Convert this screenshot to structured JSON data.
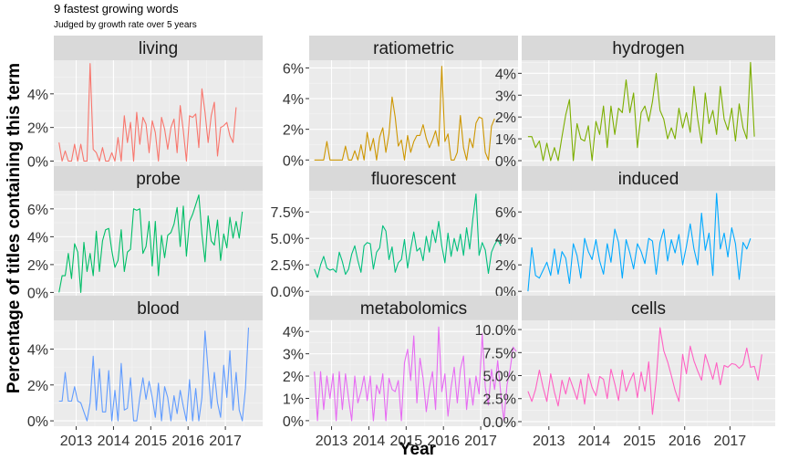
{
  "title": "9 fastest growing words",
  "subtitle": "Judged by growth rate over 5 years",
  "xlabel": "Year",
  "ylabel": "Percentage of titles containing this term",
  "chart_data": {
    "type": "line",
    "title": "9 fastest growing words",
    "subtitle": "Judged by growth rate over 5 years",
    "xlabel": "Year",
    "ylabel": "Percentage of titles containing this term",
    "x_ticks": [
      2013,
      2014,
      2015,
      2016,
      2017
    ],
    "xlim": [
      2012.4,
      2018.0
    ],
    "x_start": 2012.54,
    "x_step": 0.0833,
    "grid": true,
    "legend": "none",
    "facets": [
      {
        "name": "living",
        "color": "#F8766D",
        "ylim": [
          -0.3,
          6.0
        ],
        "yticks": [
          0,
          2,
          4
        ],
        "tick_labels": [
          "0%",
          "2%",
          "4%"
        ],
        "values": [
          1.1,
          0.0,
          0.6,
          0.0,
          0.0,
          1.0,
          0.0,
          1.0,
          0.0,
          0.0,
          5.8,
          0.7,
          0.5,
          0.0,
          0.8,
          0.0,
          0.0,
          0.5,
          0.0,
          1.4,
          0.0,
          2.7,
          1.1,
          2.3,
          0.0,
          2.9,
          1.0,
          2.6,
          2.2,
          0.5,
          2.4,
          1.7,
          0.0,
          2.6,
          1.9,
          0.7,
          2.0,
          2.5,
          0.5,
          3.3,
          1.8,
          0.0,
          2.7,
          2.6,
          2.8,
          0.8,
          4.3,
          2.9,
          1.1,
          2.7,
          3.5,
          0.3,
          2.0,
          2.1,
          2.3,
          1.5,
          1.1,
          3.2
        ]
      },
      {
        "name": "ratiometric",
        "color": "#CD9600",
        "ylim": [
          -0.4,
          6.5
        ],
        "yticks": [
          0,
          2,
          4,
          6
        ],
        "tick_labels": [
          "0%",
          "2%",
          "4%",
          "6%"
        ],
        "values": [
          0.0,
          0.0,
          0.0,
          0.0,
          1.2,
          0.0,
          0.0,
          0.0,
          0.0,
          0.0,
          0.9,
          0.0,
          0.0,
          0.6,
          0.0,
          1.0,
          0.0,
          1.8,
          0.6,
          1.4,
          0.0,
          1.5,
          2.1,
          0.5,
          1.7,
          4.1,
          2.8,
          0.9,
          1.3,
          0.0,
          1.6,
          0.5,
          1.2,
          1.6,
          1.6,
          2.3,
          1.4,
          0.8,
          1.3,
          1.9,
          0.9,
          6.1,
          1.2,
          1.7,
          0.0,
          0.0,
          0.5,
          2.9,
          0.8,
          0.0,
          1.4,
          0.8,
          2.4,
          2.8,
          2.7,
          0.5,
          0.0,
          2.2,
          2.7
        ]
      },
      {
        "name": "hydrogen",
        "color": "#7CAE00",
        "ylim": [
          -0.25,
          4.6
        ],
        "yticks": [
          0,
          1,
          2,
          3,
          4
        ],
        "tick_labels": [
          "0%",
          "1%",
          "2%",
          "3%",
          "4%"
        ],
        "values": [
          1.1,
          1.1,
          0.6,
          0.9,
          0.0,
          0.8,
          0.0,
          0.6,
          0.0,
          1.1,
          2.1,
          2.8,
          0.0,
          1.7,
          1.0,
          0.9,
          1.6,
          0.0,
          1.8,
          1.2,
          2.5,
          0.6,
          2.5,
          1.2,
          2.4,
          2.2,
          3.7,
          2.2,
          3.1,
          0.6,
          2.2,
          2.5,
          1.8,
          2.7,
          4.0,
          2.3,
          1.9,
          1.0,
          1.5,
          1.0,
          2.4,
          1.5,
          2.2,
          1.3,
          3.4,
          1.9,
          0.8,
          3.1,
          1.7,
          2.3,
          1.2,
          3.4,
          1.9,
          1.4,
          2.4,
          0.9,
          2.6,
          1.5,
          1.0,
          4.5,
          1.1
        ]
      },
      {
        "name": "probe",
        "color": "#00BE67",
        "ylim": [
          -0.3,
          7.3
        ],
        "yticks": [
          0,
          2,
          4,
          6
        ],
        "tick_labels": [
          "0%",
          "2%",
          "4%",
          "6%"
        ],
        "values": [
          0.0,
          1.2,
          1.2,
          2.8,
          1.0,
          3.5,
          2.9,
          0.0,
          3.6,
          1.5,
          2.8,
          1.2,
          4.4,
          1.5,
          3.7,
          4.5,
          4.6,
          3.0,
          1.8,
          2.3,
          4.5,
          1.5,
          2.9,
          3.1,
          6.0,
          5.9,
          6.0,
          2.8,
          3.3,
          5.1,
          1.9,
          5.1,
          1.2,
          4.1,
          2.5,
          4.1,
          4.3,
          4.9,
          6.1,
          3.3,
          6.2,
          2.6,
          5.1,
          5.6,
          6.3,
          7.0,
          4.2,
          2.2,
          5.5,
          3.7,
          3.4,
          5.2,
          2.3,
          4.2,
          3.2,
          5.4,
          3.9,
          5.1,
          3.9,
          5.8
        ]
      },
      {
        "name": "fluorescent",
        "color": "#00BF7D",
        "ylim": [
          -0.5,
          9.5
        ],
        "yticks": [
          0,
          2.5,
          5,
          7.5
        ],
        "tick_labels": [
          "0.0%",
          "2.5%",
          "5.0%",
          "7.5%"
        ],
        "values": [
          2.1,
          1.3,
          2.5,
          3.3,
          2.2,
          2.0,
          2.1,
          1.8,
          3.7,
          2.8,
          1.6,
          2.1,
          3.5,
          4.3,
          2.9,
          1.8,
          4.3,
          4.6,
          4.5,
          2.1,
          3.7,
          4.1,
          6.2,
          5.7,
          3.0,
          4.2,
          1.8,
          2.7,
          3.0,
          4.9,
          2.2,
          4.0,
          5.6,
          3.8,
          4.1,
          2.9,
          5.2,
          3.7,
          5.8,
          4.6,
          6.6,
          4.3,
          2.7,
          5.5,
          3.3,
          5.0,
          3.8,
          5.4,
          3.4,
          6.0,
          4.0,
          6.9,
          9.2,
          3.4,
          4.6,
          3.9,
          1.7,
          3.7,
          4.4,
          4.9,
          4.3
        ]
      },
      {
        "name": "induced",
        "color": "#00A9FF",
        "ylim": [
          -0.4,
          7.6
        ],
        "yticks": [
          0,
          2,
          4,
          6
        ],
        "tick_labels": [
          "0%",
          "2%",
          "4%",
          "6%"
        ],
        "values": [
          0.0,
          3.3,
          1.2,
          1.0,
          1.6,
          2.2,
          1.2,
          3.2,
          1.3,
          3.0,
          2.5,
          0.6,
          3.6,
          2.7,
          1.0,
          4.0,
          3.0,
          2.4,
          3.9,
          2.3,
          1.3,
          3.6,
          2.2,
          4.7,
          3.7,
          1.0,
          3.9,
          2.9,
          1.7,
          3.6,
          3.0,
          2.1,
          4.0,
          3.8,
          1.3,
          3.7,
          4.7,
          2.3,
          3.9,
          2.9,
          4.3,
          2.0,
          3.4,
          5.1,
          3.2,
          2.0,
          5.9,
          3.1,
          4.4,
          1.2,
          7.4,
          3.2,
          4.4,
          2.6,
          4.8,
          3.6,
          0.9,
          3.7,
          3.2,
          4.0
        ]
      },
      {
        "name": "blood",
        "color": "#619CFF",
        "ylim": [
          -0.3,
          5.6
        ],
        "yticks": [
          0,
          2,
          4
        ],
        "tick_labels": [
          "0%",
          "2%",
          "4%"
        ],
        "values": [
          1.1,
          1.1,
          2.7,
          1.1,
          1.1,
          1.9,
          1.1,
          1.0,
          0.5,
          0.0,
          1.0,
          3.6,
          0.6,
          2.9,
          0.5,
          0.5,
          2.8,
          0.0,
          1.7,
          0.0,
          3.2,
          0.6,
          0.7,
          2.4,
          0.0,
          0.0,
          1.3,
          2.4,
          1.2,
          2.2,
          1.3,
          0.2,
          2.1,
          0.0,
          1.9,
          1.3,
          0.0,
          1.4,
          0.4,
          1.7,
          0.8,
          0.0,
          2.3,
          0.0,
          1.8,
          0.0,
          1.3,
          5.0,
          2.8,
          0.7,
          2.7,
          1.0,
          0.2,
          3.1,
          1.3,
          3.9,
          0.6,
          2.7,
          0.6,
          0.0,
          1.8,
          5.2
        ]
      },
      {
        "name": "metabolomics",
        "color": "#E76BF3",
        "ylim": [
          -0.25,
          4.5
        ],
        "yticks": [
          0,
          1,
          2,
          3,
          4
        ],
        "tick_labels": [
          "0%",
          "1%",
          "2%",
          "3%",
          "4%"
        ],
        "values": [
          2.2,
          0.0,
          2.2,
          0.5,
          2.0,
          1.0,
          2.1,
          0.0,
          2.2,
          0.5,
          2.1,
          1.0,
          0.0,
          2.0,
          0.8,
          1.3,
          2.0,
          0.9,
          2.0,
          0.0,
          1.6,
          1.2,
          2.1,
          0.0,
          1.9,
          1.4,
          1.3,
          1.8,
          0.0,
          2.6,
          3.2,
          1.8,
          3.8,
          0.8,
          2.8,
          1.9,
          0.4,
          1.5,
          2.2,
          0.5,
          4.2,
          1.3,
          2.1,
          0.2,
          1.5,
          2.4,
          0.8,
          2.3,
          2.9,
          0.5,
          1.9,
          0.7,
          2.0,
          1.2,
          3.9,
          1.5,
          0.7,
          2.3,
          1.4,
          2.7,
          1.2,
          0.0,
          1.6,
          2.3,
          3.3,
          3.1
        ]
      },
      {
        "name": "cells",
        "color": "#FF61C3",
        "ylim": [
          -0.5,
          11.0
        ],
        "yticks": [
          0,
          2.5,
          5,
          7.5,
          10
        ],
        "tick_labels": [
          "0.0%",
          "2.5%",
          "5.0%",
          "7.5%",
          "10.0%"
        ],
        "values": [
          3.3,
          2.2,
          3.5,
          5.6,
          3.7,
          2.2,
          5.2,
          3.2,
          1.7,
          4.5,
          3.0,
          4.8,
          3.6,
          2.4,
          4.6,
          1.9,
          5.2,
          3.7,
          2.8,
          4.9,
          4.6,
          2.5,
          5.7,
          4.1,
          2.3,
          5.6,
          3.3,
          4.4,
          5.3,
          2.6,
          5.4,
          3.3,
          6.5,
          0.8,
          4.5,
          10.2,
          7.7,
          6.5,
          5.0,
          3.4,
          2.2,
          7.3,
          5.2,
          8.2,
          6.6,
          5.5,
          4.5,
          7.3,
          6.0,
          4.6,
          6.4,
          4.0,
          6.1,
          5.9,
          6.3,
          6.2,
          5.8,
          6.2,
          8.0,
          5.9,
          6.0,
          4.5,
          7.3
        ]
      }
    ]
  }
}
